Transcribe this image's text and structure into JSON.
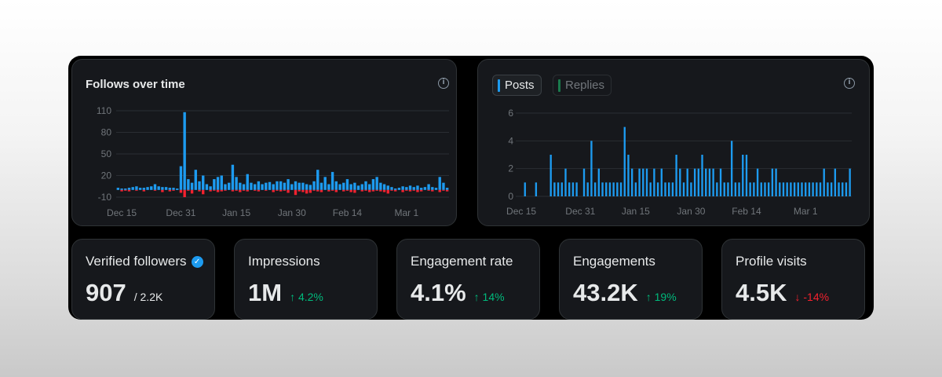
{
  "follows_card": {
    "title": "Follows over time",
    "info_icon": "info-icon"
  },
  "posts_card": {
    "tabs": [
      {
        "label": "Posts",
        "active": true,
        "color": "#1d9bf0"
      },
      {
        "label": "Replies",
        "active": false,
        "color": "#1a7a4c"
      }
    ],
    "info_icon": "info-icon"
  },
  "metrics": [
    {
      "label": "Verified followers",
      "value": "907",
      "sub": "/ 2.2K",
      "badge": "verified-icon"
    },
    {
      "label": "Impressions",
      "value": "1M",
      "change": "↑ 4.2%",
      "direction": "up"
    },
    {
      "label": "Engagement rate",
      "value": "4.1%",
      "change": "↑ 14%",
      "direction": "up"
    },
    {
      "label": "Engagements",
      "value": "43.2K",
      "change": "↑ 19%",
      "direction": "up"
    },
    {
      "label": "Profile visits",
      "value": "4.5K",
      "change": "↓ -14%",
      "direction": "down"
    }
  ],
  "colors": {
    "gain": "#1d9bf0",
    "loss": "#f4212e",
    "posts": "#1d9bf0",
    "up": "#00ba7c",
    "down": "#f4212e"
  },
  "chart_data": [
    {
      "type": "bar",
      "xlabel": "",
      "ylabel": "",
      "y_ticks": [
        "110",
        "80",
        "50",
        "20",
        "-10"
      ],
      "y_tick_values": [
        110,
        80,
        50,
        20,
        -10
      ],
      "ylim": [
        -10,
        110
      ],
      "x_tick_labels": [
        "Dec 15",
        "Dec 31",
        "Jan 15",
        "Jan 30",
        "Feb 14",
        "Mar 1"
      ],
      "x_tick_index": [
        1,
        17,
        32,
        47,
        62,
        78
      ],
      "grid": true,
      "series": [
        {
          "name": "",
          "color": "#1d9bf0",
          "values": [
            3,
            2,
            2,
            3,
            4,
            5,
            3,
            3,
            4,
            5,
            8,
            5,
            4,
            4,
            3,
            3,
            2,
            33,
            108,
            15,
            10,
            28,
            12,
            20,
            8,
            5,
            15,
            18,
            20,
            8,
            10,
            35,
            18,
            10,
            8,
            22,
            10,
            8,
            12,
            8,
            10,
            11,
            8,
            12,
            12,
            10,
            15,
            8,
            12,
            10,
            10,
            8,
            7,
            12,
            28,
            10,
            18,
            8,
            25,
            12,
            8,
            10,
            15,
            8,
            10,
            6,
            8,
            12,
            8,
            15,
            18,
            10,
            8,
            6,
            4,
            2,
            3,
            5,
            4,
            6,
            4,
            6,
            3,
            4,
            8,
            4,
            3,
            18,
            10,
            3
          ]
        },
        {
          "name": "",
          "color": "#f4212e",
          "values": [
            0,
            -2,
            -1,
            -2,
            0,
            -1,
            0,
            -2,
            0,
            0,
            -1,
            0,
            -3,
            0,
            -2,
            -1,
            0,
            -4,
            -10,
            -1,
            -5,
            0,
            -2,
            -6,
            0,
            -2,
            -1,
            -3,
            -2,
            -1,
            0,
            -2,
            -1,
            -3,
            -1,
            -2,
            0,
            -1,
            -2,
            0,
            -1,
            0,
            -3,
            -1,
            -2,
            -1,
            -4,
            0,
            -7,
            -2,
            -3,
            -5,
            -4,
            -1,
            -2,
            -3,
            0,
            -2,
            -1,
            -3,
            0,
            -2,
            -1,
            -3,
            -4,
            0,
            -2,
            -1,
            -3,
            -2,
            -1,
            -2,
            -3,
            -5,
            -1,
            -2,
            0,
            -3,
            -1,
            -2,
            -1,
            -3,
            -2,
            0,
            -1,
            -2,
            0,
            -3,
            -1,
            -2
          ]
        }
      ]
    },
    {
      "type": "bar",
      "xlabel": "",
      "ylabel": "",
      "y_ticks": [
        "6",
        "4",
        "2",
        "0"
      ],
      "y_tick_values": [
        6,
        4,
        2,
        0
      ],
      "ylim": [
        0,
        6
      ],
      "x_tick_labels": [
        "Dec 15",
        "Dec 31",
        "Jan 15",
        "Jan 30",
        "Feb 14",
        "Mar 1"
      ],
      "x_tick_index": [
        1,
        17,
        32,
        47,
        62,
        78
      ],
      "grid": true,
      "series": [
        {
          "name": "Posts",
          "color": "#1d9bf0",
          "values": [
            0,
            0,
            1,
            0,
            0,
            1,
            0,
            0,
            0,
            3,
            1,
            1,
            1,
            2,
            1,
            1,
            1,
            0,
            2,
            1,
            4,
            1,
            2,
            1,
            1,
            1,
            1,
            1,
            1,
            5,
            3,
            2,
            1,
            2,
            2,
            2,
            1,
            2,
            1,
            2,
            1,
            1,
            1,
            3,
            2,
            1,
            2,
            1,
            2,
            2,
            3,
            2,
            2,
            2,
            1,
            2,
            1,
            1,
            4,
            1,
            1,
            3,
            3,
            1,
            1,
            2,
            1,
            1,
            1,
            2,
            2,
            1,
            1,
            1,
            1,
            1,
            1,
            1,
            1,
            1,
            1,
            1,
            1,
            2,
            1,
            1,
            2,
            1,
            1,
            1,
            2
          ]
        }
      ]
    }
  ]
}
